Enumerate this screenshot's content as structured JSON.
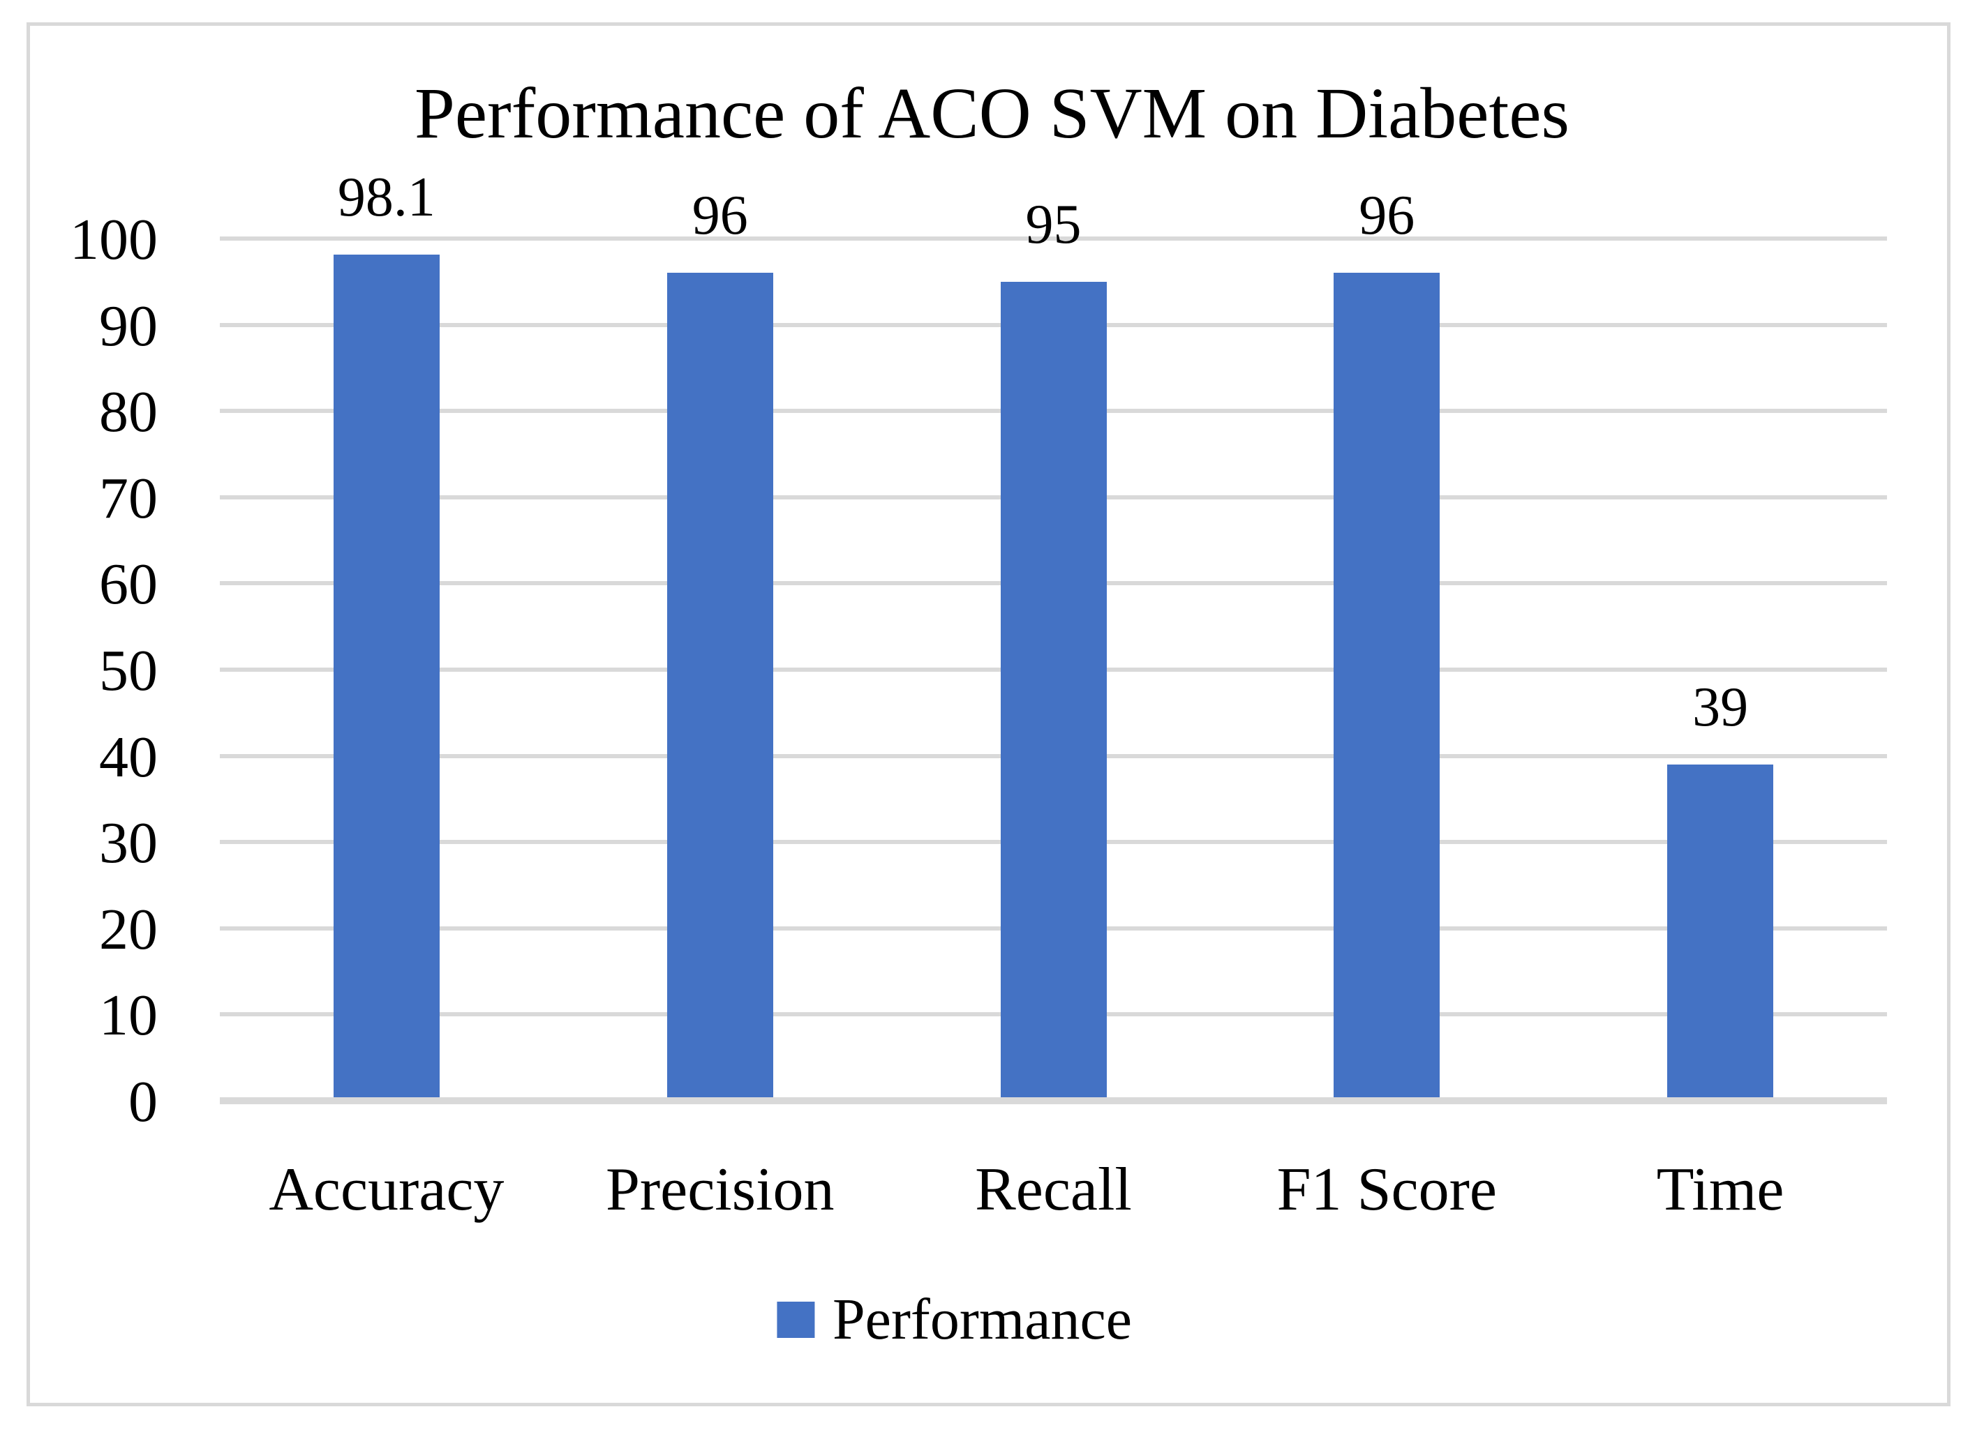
{
  "chart_data": {
    "type": "bar",
    "title": "Performance of ACO SVM on Diabetes",
    "categories": [
      "Accuracy",
      "Precision",
      "Recall",
      "F1 Score",
      "Time"
    ],
    "series": [
      {
        "name": "Performance",
        "values": [
          98.1,
          96,
          95,
          96,
          39
        ]
      }
    ],
    "data_labels": [
      "98.1",
      "96",
      "95",
      "96",
      "39"
    ],
    "xlabel": "",
    "ylabel": "",
    "ylim": [
      0,
      100
    ],
    "ytick_step": 10,
    "ytick_labels": [
      "0",
      "10",
      "20",
      "30",
      "40",
      "50",
      "60",
      "70",
      "80",
      "90",
      "100"
    ],
    "grid": true,
    "legend_position": "bottom",
    "colors": {
      "bar": "#4472C4",
      "gridline": "#D9D9D9",
      "axis_line": "#D9D9D9",
      "frame_border": "#D9D9D9",
      "text": "#000000",
      "background": "#FFFFFF"
    }
  }
}
